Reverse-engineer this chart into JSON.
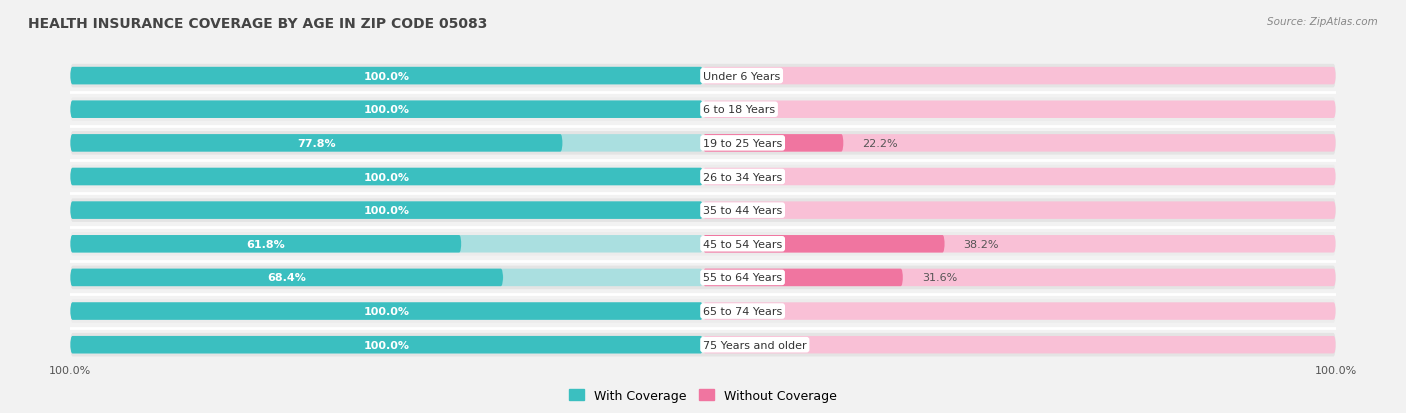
{
  "title": "HEALTH INSURANCE COVERAGE BY AGE IN ZIP CODE 05083",
  "source": "Source: ZipAtlas.com",
  "categories": [
    "Under 6 Years",
    "6 to 18 Years",
    "19 to 25 Years",
    "26 to 34 Years",
    "35 to 44 Years",
    "45 to 54 Years",
    "55 to 64 Years",
    "65 to 74 Years",
    "75 Years and older"
  ],
  "with_coverage": [
    100.0,
    100.0,
    77.8,
    100.0,
    100.0,
    61.8,
    68.4,
    100.0,
    100.0
  ],
  "without_coverage": [
    0.0,
    0.0,
    22.2,
    0.0,
    0.0,
    38.2,
    31.6,
    0.0,
    0.0
  ],
  "color_with": "#3bbfc0",
  "color_without": "#f075a0",
  "color_with_light": "#aadfe0",
  "color_without_light": "#f9c0d6",
  "row_bg_light": "#e8e8e8",
  "row_bg_dark": "#d8d8d8",
  "separator_color": "#ffffff",
  "title_color": "#444444",
  "source_color": "#888888",
  "label_color": "#555555",
  "white_text": "#ffffff",
  "label_box_color": "#ffffff",
  "title_fontsize": 10,
  "bar_label_fontsize": 8,
  "cat_label_fontsize": 8,
  "legend_fontsize": 9,
  "source_fontsize": 7.5
}
